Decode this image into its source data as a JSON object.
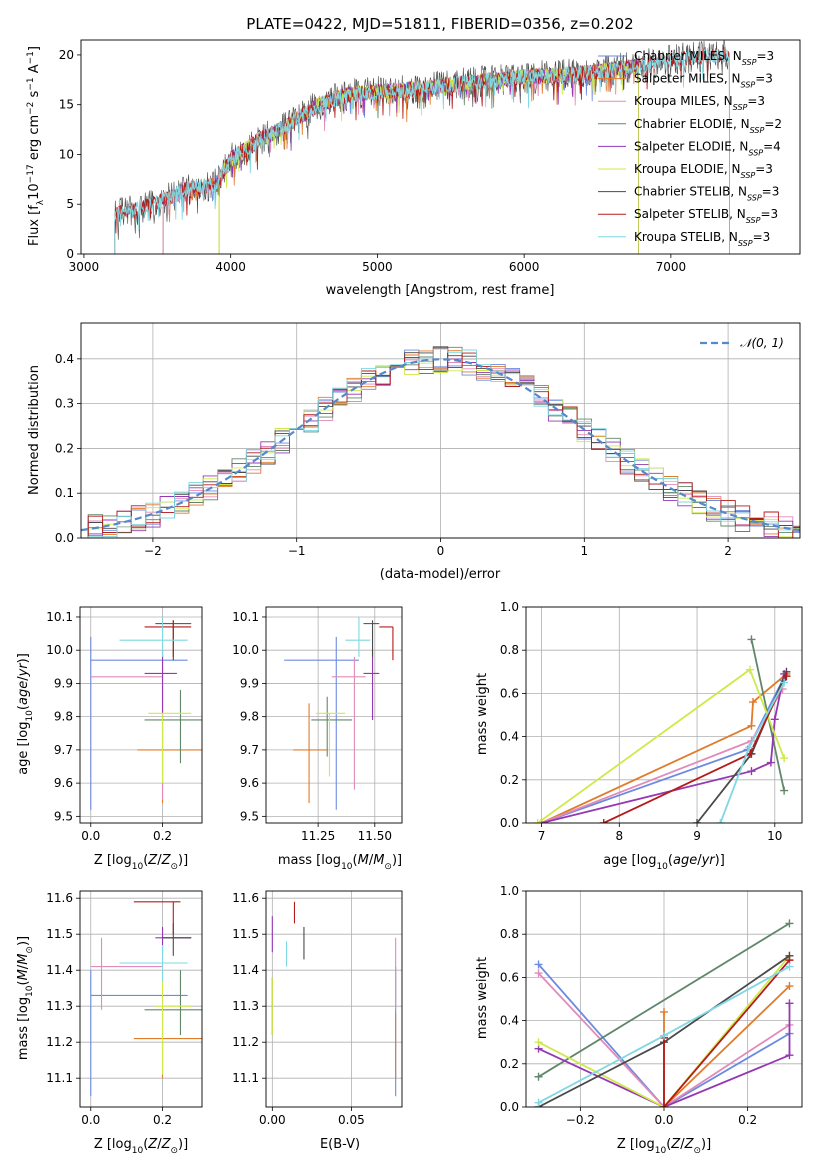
{
  "colors": [
    "#6c8be0",
    "#e07b2a",
    "#e28ab9",
    "#60876a",
    "#9538b2",
    "#cfe94b",
    "#4a4a4a",
    "#b51b1b",
    "#7fd8e2"
  ],
  "chart_data": [
    {
      "id": "spectrum",
      "type": "line",
      "title": "PLATE=0422, MJD=51811, FIBERID=0356, z=0.202",
      "xlabel": "wavelength [Angstrom, rest frame]",
      "ylabel": "Flux [f_λ10^-17 erg cm^-2 s^-1 A^-1]",
      "xlim": [
        2980,
        7880
      ],
      "ylim": [
        0,
        21.5
      ],
      "xticks": [
        "3000",
        "4000",
        "5000",
        "6000",
        "7000"
      ],
      "yticks": [
        "0",
        "5",
        "10",
        "15",
        "20"
      ],
      "legend": "top-right",
      "series": [
        {
          "name": "Chabrier MILES, N_SSP=3",
          "start": 3540,
          "end": 6780
        },
        {
          "name": "Salpeter MILES, N_SSP=3",
          "start": 3540,
          "end": 6780
        },
        {
          "name": "Kroupa MILES, N_SSP=3",
          "start": 3540,
          "end": 6780
        },
        {
          "name": "Chabrier ELODIE, N_SSP=2",
          "start": 3920,
          "end": 6780
        },
        {
          "name": "Salpeter ELODIE, N_SSP=4",
          "start": 3920,
          "end": 6780
        },
        {
          "name": "Kroupa ELODIE, N_SSP=3",
          "start": 3920,
          "end": 6780
        },
        {
          "name": "Chabrier STELIB, N_SSP=3",
          "start": 3210,
          "end": 7400
        },
        {
          "name": "Salpeter STELIB, N_SSP=3",
          "start": 3210,
          "end": 7400
        },
        {
          "name": "Kroupa STELIB, N_SSP=3",
          "start": 3210,
          "end": 7400
        }
      ],
      "continuum": [
        [
          3200,
          4
        ],
        [
          3400,
          4.6
        ],
        [
          3550,
          5.5
        ],
        [
          3700,
          6.5
        ],
        [
          3900,
          7
        ],
        [
          4000,
          9.5
        ],
        [
          4200,
          11.5
        ],
        [
          4400,
          13
        ],
        [
          4600,
          15
        ],
        [
          4800,
          16
        ],
        [
          5000,
          16.3
        ],
        [
          5200,
          16.5
        ],
        [
          5500,
          17
        ],
        [
          5800,
          17.5
        ],
        [
          6000,
          17.8
        ],
        [
          6300,
          18
        ],
        [
          6600,
          18.5
        ],
        [
          6800,
          19
        ],
        [
          7000,
          19.5
        ],
        [
          7300,
          20
        ],
        [
          7400,
          20
        ]
      ]
    },
    {
      "id": "residuals",
      "type": "step",
      "xlabel": "(data-model)/error",
      "ylabel": "Normed distribution",
      "xlim": [
        -2.5,
        2.5
      ],
      "ylim": [
        0,
        0.48
      ],
      "xticks": [
        "−2",
        "−1",
        "0",
        "1",
        "2"
      ],
      "yticks": [
        "0.0",
        "0.1",
        "0.2",
        "0.3",
        "0.4"
      ],
      "legend_label": "𝒩(0, 1)",
      "bin_width": 0.1
    },
    {
      "id": "age-vs-Z",
      "type": "errorbar",
      "xlabel": "Z [log10(Z/Z⊙)]",
      "ylabel": "age  [log10(age/yr)]",
      "xlim": [
        -0.03,
        0.31
      ],
      "ylim": [
        9.48,
        10.13
      ],
      "xticks": [
        "0.0",
        "0.2"
      ],
      "yticks": [
        "9.5",
        "9.6",
        "9.7",
        "9.8",
        "9.9",
        "10.0",
        "10.1"
      ],
      "points": [
        {
          "x": 0.0,
          "xl": 0.0,
          "xh": 0.27,
          "y": 9.97,
          "yl": 9.52,
          "yh": 10.04
        },
        {
          "x": 0.2,
          "xl": 0.13,
          "xh": 0.31,
          "y": 9.7,
          "yl": 9.54,
          "yh": 9.77
        },
        {
          "x": 0.2,
          "xl": 0.0,
          "xh": 0.2,
          "y": 9.92,
          "yl": 9.55,
          "yh": 10.0
        },
        {
          "x": 0.25,
          "xl": 0.15,
          "xh": 0.31,
          "y": 9.79,
          "yl": 9.66,
          "yh": 9.88
        },
        {
          "x": 0.2,
          "xl": 0.15,
          "xh": 0.24,
          "y": 9.93,
          "yl": 9.79,
          "yh": 10.0
        },
        {
          "x": 0.2,
          "xl": 0.16,
          "xh": 0.28,
          "y": 9.81,
          "yl": 9.6,
          "yh": 9.81
        },
        {
          "x": 0.23,
          "xl": 0.18,
          "xh": 0.28,
          "y": 10.08,
          "yl": 9.97,
          "yh": 10.09
        },
        {
          "x": 0.23,
          "xl": 0.15,
          "xh": 0.28,
          "y": 10.07,
          "yl": 9.98,
          "yh": 10.09
        },
        {
          "x": 0.2,
          "xl": 0.08,
          "xh": 0.27,
          "y": 10.03,
          "yl": 9.98,
          "yh": 10.1
        }
      ]
    },
    {
      "id": "age-vs-mass",
      "type": "errorbar",
      "xlabel": "mass [log10(M/M⊙)]",
      "ylabel": "",
      "xlim": [
        11.02,
        11.62
      ],
      "ylim": [
        9.48,
        10.13
      ],
      "xticks": [
        "11.25",
        "11.50"
      ],
      "yticks": [
        "9.5",
        "9.6",
        "9.7",
        "9.8",
        "9.9",
        "10.0",
        "10.1"
      ],
      "points": [
        {
          "x": 11.33,
          "xl": 11.1,
          "xh": 11.43,
          "y": 9.97,
          "yl": 9.52,
          "yh": 10.04
        },
        {
          "x": 11.21,
          "xl": 11.14,
          "xh": 11.29,
          "y": 9.7,
          "yl": 9.54,
          "yh": 9.84
        },
        {
          "x": 11.41,
          "xl": 11.31,
          "xh": 11.46,
          "y": 9.92,
          "yl": 9.58,
          "yh": 9.98
        },
        {
          "x": 11.29,
          "xl": 11.22,
          "xh": 11.4,
          "y": 9.79,
          "yl": 9.68,
          "yh": 9.86
        },
        {
          "x": 11.49,
          "xl": 11.45,
          "xh": 11.52,
          "y": 9.93,
          "yl": 9.79,
          "yh": 10.0
        },
        {
          "x": 11.3,
          "xl": 11.24,
          "xh": 11.37,
          "y": 9.81,
          "yl": 9.62,
          "yh": 9.81
        },
        {
          "x": 11.49,
          "xl": 11.45,
          "xh": 11.52,
          "y": 10.08,
          "yl": 9.98,
          "yh": 10.09
        },
        {
          "x": 11.58,
          "xl": 11.52,
          "xh": 11.58,
          "y": 10.07,
          "yl": 9.97,
          "yh": 10.07
        },
        {
          "x": 11.43,
          "xl": 11.37,
          "xh": 11.48,
          "y": 10.03,
          "yl": 9.98,
          "yh": 10.1
        }
      ]
    },
    {
      "id": "mw-vs-age",
      "type": "line",
      "xlabel": "age  [log10(age/yr)]",
      "ylabel": "mass weight",
      "xlim": [
        6.8,
        10.35
      ],
      "ylim": [
        0,
        1.0
      ],
      "xticks": [
        "7",
        "8",
        "9",
        "10"
      ],
      "yticks": [
        "0.0",
        "0.2",
        "0.4",
        "0.6",
        "0.8",
        "1.0"
      ],
      "series": [
        {
          "pts": [
            [
              7.0,
              0.0
            ],
            [
              9.65,
              0.34
            ],
            [
              10.1,
              0.66
            ]
          ]
        },
        {
          "pts": [
            [
              7.0,
              0.0
            ],
            [
              9.7,
              0.45
            ],
            [
              9.72,
              0.56
            ],
            [
              10.15,
              0.69
            ]
          ]
        },
        {
          "pts": [
            [
              7.0,
              0.0
            ],
            [
              9.7,
              0.38
            ],
            [
              10.1,
              0.62
            ]
          ]
        },
        {
          "pts": [
            [
              9.7,
              0.85
            ],
            [
              10.12,
              0.15
            ]
          ]
        },
        {
          "pts": [
            [
              7.0,
              0.0
            ],
            [
              9.7,
              0.24
            ],
            [
              9.95,
              0.28
            ],
            [
              10.0,
              0.48
            ],
            [
              10.12,
              0.69
            ]
          ]
        },
        {
          "pts": [
            [
              6.95,
              0.0
            ],
            [
              9.68,
              0.71
            ],
            [
              10.12,
              0.3
            ]
          ]
        },
        {
          "pts": [
            [
              9.0,
              0.0
            ],
            [
              9.7,
              0.32
            ],
            [
              10.15,
              0.7
            ]
          ]
        },
        {
          "pts": [
            [
              7.8,
              0.0
            ],
            [
              9.68,
              0.32
            ],
            [
              10.15,
              0.68
            ]
          ]
        },
        {
          "pts": [
            [
              9.3,
              0.0
            ],
            [
              9.67,
              0.35
            ],
            [
              10.12,
              0.65
            ]
          ]
        }
      ]
    },
    {
      "id": "mass-vs-Z",
      "type": "errorbar",
      "xlabel": "Z [log10(Z/Z⊙)]",
      "ylabel": "mass [log10(M/M⊙)]",
      "xlim": [
        -0.03,
        0.31
      ],
      "ylim": [
        11.02,
        11.62
      ],
      "xticks": [
        "0.0",
        "0.2"
      ],
      "yticks": [
        "11.1",
        "11.2",
        "11.3",
        "11.4",
        "11.5",
        "11.6"
      ],
      "points": [
        {
          "x": 0.0,
          "xl": 0.0,
          "xh": 0.27,
          "y": 11.33,
          "yl": 11.05,
          "yh": 11.4
        },
        {
          "x": 0.2,
          "xl": 0.12,
          "xh": 0.31,
          "y": 11.21,
          "yl": 11.1,
          "yh": 11.28
        },
        {
          "x": 0.03,
          "xl": 0.0,
          "xh": 0.2,
          "y": 11.41,
          "yl": 11.29,
          "yh": 11.49
        },
        {
          "x": 0.25,
          "xl": 0.15,
          "xh": 0.31,
          "y": 11.29,
          "yl": 11.22,
          "yh": 11.4
        },
        {
          "x": 0.2,
          "xl": 0.18,
          "xh": 0.28,
          "y": 11.49,
          "yl": 11.45,
          "yh": 11.52
        },
        {
          "x": 0.2,
          "xl": 0.18,
          "xh": 0.28,
          "y": 11.3,
          "yl": 11.11,
          "yh": 11.38
        },
        {
          "x": 0.23,
          "xl": 0.2,
          "xh": 0.28,
          "y": 11.49,
          "yl": 11.44,
          "yh": 11.53
        },
        {
          "x": 0.23,
          "xl": 0.12,
          "xh": 0.25,
          "y": 11.59,
          "yl": 11.5,
          "yh": 11.59
        },
        {
          "x": 0.2,
          "xl": 0.08,
          "xh": 0.27,
          "y": 11.42,
          "yl": 11.37,
          "yh": 11.47
        }
      ]
    },
    {
      "id": "mass-vs-ebv",
      "type": "errorbar",
      "xlabel": "E(B-V)",
      "ylabel": "",
      "xlim": [
        -0.004,
        0.082
      ],
      "ylim": [
        11.02,
        11.62
      ],
      "xticks": [
        "0.00",
        "0.05"
      ],
      "yticks": [
        "11.1",
        "11.2",
        "11.3",
        "11.4",
        "11.5",
        "11.6"
      ],
      "points": [
        {
          "x": 0.078,
          "xl": 0.078,
          "xh": 0.078,
          "y": 11.33,
          "yl": 11.05,
          "yh": 11.41
        },
        {
          "x": 0.078,
          "xl": 0.078,
          "xh": 0.078,
          "y": 11.21,
          "yl": 11.1,
          "yh": 11.28
        },
        {
          "x": 0.078,
          "xl": 0.078,
          "xh": 0.078,
          "y": 11.41,
          "yl": 11.29,
          "yh": 11.49
        },
        {
          "x": 0.0,
          "xl": 0.0,
          "xh": 0.0,
          "y": 11.3,
          "yl": 11.22,
          "yh": 11.38
        },
        {
          "x": 0.0,
          "xl": 0.0,
          "xh": 0.0,
          "y": 11.49,
          "yl": 11.45,
          "yh": 11.55
        },
        {
          "x": 0.0,
          "xl": 0.0,
          "xh": 0.0,
          "y": 11.3,
          "yl": 11.22,
          "yh": 11.38
        },
        {
          "x": 0.02,
          "xl": 0.02,
          "xh": 0.02,
          "y": 11.47,
          "yl": 11.43,
          "yh": 11.52
        },
        {
          "x": 0.014,
          "xl": 0.014,
          "xh": 0.014,
          "y": 11.56,
          "yl": 11.53,
          "yh": 11.59
        },
        {
          "x": 0.009,
          "xl": 0.009,
          "xh": 0.009,
          "y": 11.45,
          "yl": 11.41,
          "yh": 11.48
        }
      ]
    },
    {
      "id": "mw-vs-Z",
      "type": "line",
      "xlabel": "Z [log10(Z/Z⊙)]",
      "ylabel": "mass weight",
      "xlim": [
        -0.33,
        0.33
      ],
      "ylim": [
        0,
        1.0
      ],
      "xticks": [
        "−0.2",
        "0.0",
        "0.2"
      ],
      "yticks": [
        "0.0",
        "0.2",
        "0.4",
        "0.6",
        "0.8",
        "1.0"
      ],
      "series": [
        {
          "pts": [
            [
              -0.3,
              0.66
            ],
            [
              0.0,
              0.0
            ],
            [
              0.3,
              0.34
            ]
          ]
        },
        {
          "pts": [
            [
              0.0,
              0.44
            ],
            [
              0.0,
              0.0
            ],
            [
              0.3,
              0.56
            ]
          ]
        },
        {
          "pts": [
            [
              -0.3,
              0.62
            ],
            [
              0.0,
              0.0
            ],
            [
              0.3,
              0.38
            ]
          ]
        },
        {
          "pts": [
            [
              -0.3,
              0.14
            ],
            [
              0.3,
              0.85
            ]
          ]
        },
        {
          "pts": [
            [
              -0.3,
              0.27
            ],
            [
              0.0,
              0.0
            ],
            [
              0.3,
              0.24
            ],
            [
              0.3,
              0.48
            ]
          ]
        },
        {
          "pts": [
            [
              -0.3,
              0.3
            ],
            [
              0.0,
              0.0
            ],
            [
              0.3,
              0.7
            ]
          ]
        },
        {
          "pts": [
            [
              -0.3,
              0.0
            ],
            [
              0.0,
              0.3
            ],
            [
              0.3,
              0.7
            ]
          ]
        },
        {
          "pts": [
            [
              0.0,
              0.32
            ],
            [
              0.0,
              0.0
            ],
            [
              0.3,
              0.68
            ]
          ]
        },
        {
          "pts": [
            [
              -0.3,
              0.02
            ],
            [
              0.0,
              0.33
            ],
            [
              0.3,
              0.65
            ]
          ]
        }
      ]
    }
  ]
}
